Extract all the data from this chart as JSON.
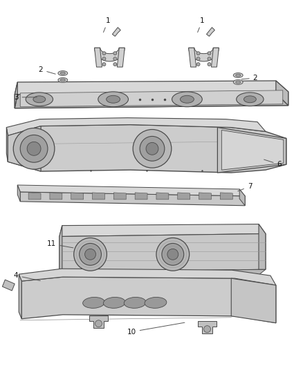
{
  "bg_color": "#ffffff",
  "lc": "#4a4a4a",
  "fc_main": "#d0d0d0",
  "fc_dark": "#a8a8a8",
  "fc_light": "#e0e0e0",
  "fc_mid": "#bbbbbb"
}
